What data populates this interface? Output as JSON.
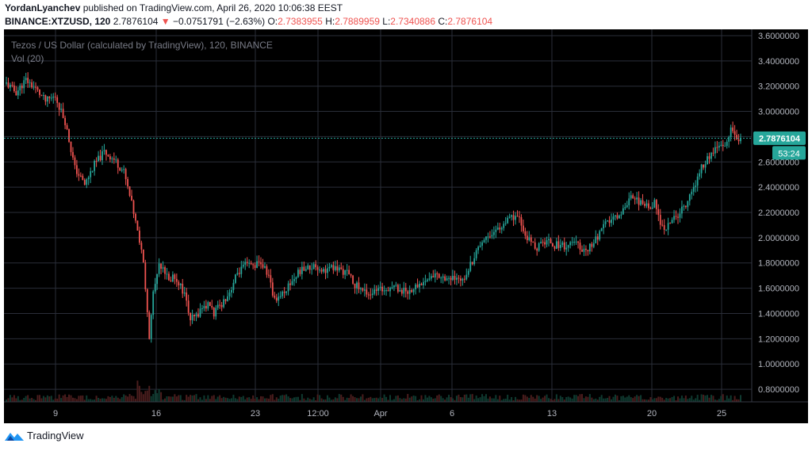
{
  "header": {
    "author": "YordanLyanchev",
    "published_text": "published on TradingView.com, April 26, 2020 10:06:38 EEST",
    "symbol": "BINANCE:XTZUSD, 120",
    "last": "2.7876104",
    "change_arrow": "▼",
    "change": "−0.0751791 (−2.63%)",
    "o_label": "O:",
    "o_value": "2.7383955",
    "h_label": "H:",
    "h_value": "2.7889959",
    "l_label": "L:",
    "l_value": "2.7340886",
    "c_label": "C:",
    "c_value": "2.7876104"
  },
  "footer": {
    "brand": "TradingView",
    "logo_icon": "tradingview-logo-icon"
  },
  "colors": {
    "background": "#000000",
    "grid": "#2a2e39",
    "up": "#26a69a",
    "down": "#ef5350",
    "price_line": "#26a69a",
    "axis_text": "#b2b5be",
    "legend_text": "#787b86"
  },
  "chart_data": {
    "type": "candlestick",
    "title": "Tezos / US Dollar (calculated by TradingView), 120, BINANCE",
    "volume_label": "Vol (20)",
    "x_ticks": [
      "9",
      "16",
      "23",
      "12:00",
      "Apr",
      "6",
      "13",
      "20",
      "25"
    ],
    "y_ticks": [
      "3.6000000",
      "3.4000000",
      "3.2000000",
      "3.0000000",
      "2.8000000",
      "2.6000000",
      "2.4000000",
      "2.2000000",
      "2.0000000",
      "1.8000000",
      "1.6000000",
      "1.4000000",
      "1.2000000",
      "1.0000000",
      "0.8000000"
    ],
    "ylim": [
      0.7,
      3.65
    ],
    "last_price": "2.7876104",
    "countdown": "53:24",
    "price_path": [
      [
        0,
        3.22
      ],
      [
        5,
        3.15
      ],
      [
        10,
        3.25
      ],
      [
        15,
        3.18
      ],
      [
        20,
        3.08
      ],
      [
        25,
        3.12
      ],
      [
        30,
        2.92
      ],
      [
        35,
        2.55
      ],
      [
        40,
        2.42
      ],
      [
        45,
        2.58
      ],
      [
        50,
        2.68
      ],
      [
        55,
        2.62
      ],
      [
        60,
        2.52
      ],
      [
        65,
        2.2
      ],
      [
        70,
        1.8
      ],
      [
        73,
        1.2
      ],
      [
        75,
        1.55
      ],
      [
        78,
        1.78
      ],
      [
        80,
        1.78
      ],
      [
        83,
        1.65
      ],
      [
        85,
        1.7
      ],
      [
        88,
        1.65
      ],
      [
        91,
        1.55
      ],
      [
        94,
        1.35
      ],
      [
        97,
        1.38
      ],
      [
        100,
        1.45
      ],
      [
        104,
        1.47
      ],
      [
        106,
        1.4
      ],
      [
        110,
        1.48
      ],
      [
        114,
        1.57
      ],
      [
        118,
        1.72
      ],
      [
        122,
        1.78
      ],
      [
        126,
        1.78
      ],
      [
        130,
        1.8
      ],
      [
        134,
        1.7
      ],
      [
        136,
        1.55
      ],
      [
        138,
        1.52
      ],
      [
        142,
        1.58
      ],
      [
        146,
        1.66
      ],
      [
        150,
        1.74
      ],
      [
        154,
        1.76
      ],
      [
        158,
        1.78
      ],
      [
        162,
        1.74
      ],
      [
        166,
        1.76
      ],
      [
        170,
        1.75
      ],
      [
        174,
        1.72
      ],
      [
        178,
        1.63
      ],
      [
        182,
        1.58
      ],
      [
        186,
        1.56
      ],
      [
        190,
        1.58
      ],
      [
        194,
        1.6
      ],
      [
        198,
        1.62
      ],
      [
        202,
        1.58
      ],
      [
        206,
        1.58
      ],
      [
        210,
        1.62
      ],
      [
        214,
        1.66
      ],
      [
        218,
        1.7
      ],
      [
        222,
        1.7
      ],
      [
        226,
        1.68
      ],
      [
        230,
        1.66
      ],
      [
        234,
        1.7
      ],
      [
        238,
        1.82
      ],
      [
        242,
        1.96
      ],
      [
        246,
        2.02
      ],
      [
        250,
        2.06
      ],
      [
        254,
        2.1
      ],
      [
        258,
        2.16
      ],
      [
        262,
        2.14
      ],
      [
        265,
        2.02
      ],
      [
        268,
        1.96
      ],
      [
        271,
        1.92
      ],
      [
        274,
        1.96
      ],
      [
        277,
        1.98
      ],
      [
        280,
        1.94
      ],
      [
        283,
        1.95
      ],
      [
        286,
        1.93
      ],
      [
        289,
        1.96
      ],
      [
        292,
        1.94
      ],
      [
        295,
        1.9
      ],
      [
        298,
        1.93
      ],
      [
        301,
        1.98
      ],
      [
        304,
        2.06
      ],
      [
        307,
        2.12
      ],
      [
        310,
        2.15
      ],
      [
        313,
        2.18
      ],
      [
        316,
        2.25
      ],
      [
        319,
        2.35
      ],
      [
        322,
        2.3
      ],
      [
        325,
        2.26
      ],
      [
        328,
        2.24
      ],
      [
        331,
        2.28
      ],
      [
        334,
        2.1
      ],
      [
        337,
        2.08
      ],
      [
        340,
        2.14
      ],
      [
        343,
        2.18
      ],
      [
        346,
        2.24
      ],
      [
        349,
        2.32
      ],
      [
        352,
        2.42
      ],
      [
        355,
        2.56
      ],
      [
        358,
        2.62
      ],
      [
        361,
        2.68
      ],
      [
        364,
        2.72
      ],
      [
        367,
        2.72
      ],
      [
        370,
        2.85
      ],
      [
        373,
        2.8
      ],
      [
        375,
        2.78
      ]
    ]
  }
}
